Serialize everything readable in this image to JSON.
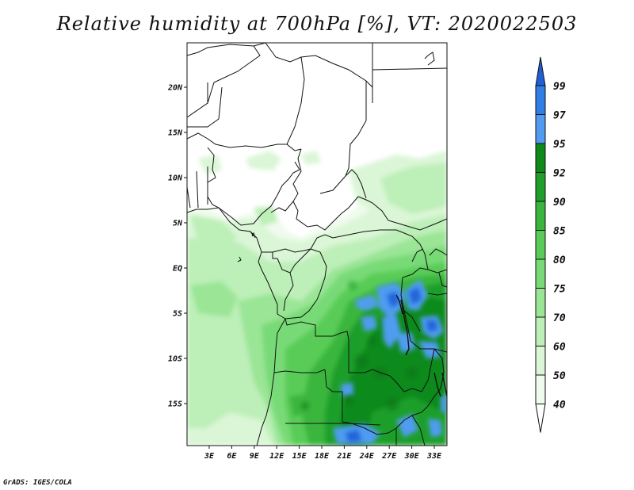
{
  "title": "Relative humidity at 700hPa [%], VT: 2020022503",
  "credit": "GrADS: IGES/COLA",
  "map": {
    "lat_ticks": [
      "20N",
      "15N",
      "10N",
      "5N",
      "EQ",
      "5S",
      "10S",
      "15S"
    ],
    "lon_ticks": [
      "3E",
      "6E",
      "9E",
      "12E",
      "15E",
      "18E",
      "21E",
      "24E",
      "27E",
      "30E",
      "33E"
    ]
  },
  "colorbar": {
    "labels": [
      "99",
      "97",
      "95",
      "92",
      "90",
      "85",
      "80",
      "75",
      "70",
      "60",
      "50",
      "40"
    ],
    "colors": [
      "#1f5fd6",
      "#2f7fe6",
      "#4f9cf0",
      "#0d8a1a",
      "#1f9f2a",
      "#3ab63c",
      "#58cc57",
      "#78da76",
      "#9ae596",
      "#bdefb8",
      "#daf6d6",
      "#effbed"
    ]
  }
}
